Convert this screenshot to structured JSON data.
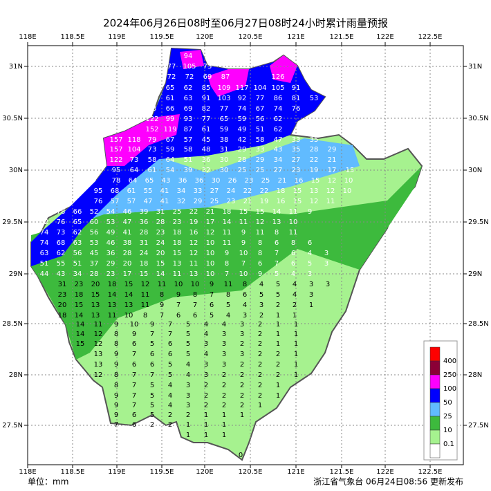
{
  "title": "2024年06月26日08时至06月27日08时24小时累计雨量预报",
  "lon_ticks": [
    "118E",
    "118.5E",
    "119E",
    "119.5E",
    "120E",
    "120.5E",
    "121E",
    "121.5E",
    "122E",
    "122.5E"
  ],
  "lat_ticks": [
    "31N",
    "30.5N",
    "30N",
    "29.5N",
    "29N",
    "28.5N",
    "28N",
    "27.5N"
  ],
  "legend": {
    "levels": [
      400,
      250,
      100,
      50,
      25,
      10,
      0.1
    ],
    "colors": [
      "#fe0000",
      "#8b0036",
      "#fe00fe",
      "#0000fe",
      "#61bbff",
      "#3dba3d",
      "#a6f28f",
      "#ffffff"
    ]
  },
  "unit": "单位：mm",
  "footer": "浙江省气象台 06月24日08:56 更新发布",
  "stations": [
    [
      94
    ],
    [
      77,
      105,
      73
    ],
    [
      72,
      72,
      69,
      87
    ],
    [
      126
    ],
    [
      65,
      62,
      85,
      109,
      117,
      104,
      105,
      91
    ],
    [
      61,
      63,
      91,
      103,
      92,
      77,
      86,
      81,
      53
    ],
    [
      83,
      66,
      69,
      82,
      77,
      74,
      67,
      74,
      76
    ],
    [
      122,
      99,
      93,
      77,
      65,
      59,
      56,
      62
    ],
    [
      152,
      119,
      87,
      61,
      59,
      49,
      51,
      62
    ],
    [
      157,
      118,
      79,
      67,
      57,
      45,
      38,
      42,
      58,
      47,
      33,
      35
    ],
    [
      157,
      104,
      73,
      59,
      58,
      48,
      31,
      29,
      33,
      43,
      35,
      28,
      29
    ],
    [
      122,
      73,
      58,
      64,
      51,
      36,
      30,
      28,
      29,
      34,
      27,
      22,
      21
    ],
    [
      95,
      64,
      61,
      54,
      39,
      32,
      30,
      25,
      25,
      27,
      23,
      19,
      17,
      15
    ],
    [
      78,
      64,
      65,
      43,
      36,
      36,
      30,
      26,
      23,
      25,
      21,
      16,
      15,
      12,
      10
    ],
    [
      95,
      68,
      61,
      55,
      41,
      34,
      33,
      27,
      24,
      22,
      22,
      18,
      15,
      13,
      12,
      10
    ],
    [
      76,
      57,
      57,
      47,
      41,
      32,
      29,
      25,
      23,
      21,
      19,
      16,
      15,
      12,
      11
    ],
    [
      78,
      66,
      52,
      54,
      46,
      39,
      31,
      25,
      22,
      21,
      18,
      15,
      15,
      14,
      11,
      9
    ],
    [
      82,
      76,
      65,
      60,
      53,
      47,
      36,
      28,
      23,
      19,
      17,
      14,
      11,
      12,
      13,
      10
    ],
    [
      74,
      73,
      62,
      56,
      49,
      41,
      28,
      23,
      18,
      16,
      12,
      11,
      9,
      11,
      8,
      11
    ],
    [
      74,
      68,
      63,
      53,
      46,
      38,
      31,
      24,
      18,
      12,
      10,
      11,
      9,
      8,
      6,
      8,
      6
    ],
    [
      63,
      62,
      56,
      45,
      36,
      28,
      24,
      20,
      15,
      12,
      10,
      9,
      10,
      8,
      7,
      6,
      4,
      3
    ],
    [
      51,
      55,
      51,
      37,
      29,
      20,
      18,
      15,
      13,
      11,
      10,
      8,
      7,
      6,
      7,
      6,
      5,
      3
    ],
    [
      44,
      43,
      34,
      28,
      23,
      17,
      15,
      14,
      11,
      13,
      10,
      7,
      10,
      9,
      5,
      4,
      3
    ],
    [
      31,
      23,
      20,
      18,
      15,
      12,
      11,
      10,
      10,
      9,
      11,
      8,
      4,
      5,
      4,
      3,
      3
    ],
    [
      23,
      18,
      15,
      14,
      14,
      11,
      8,
      9,
      8,
      7,
      8,
      6,
      5,
      5,
      4,
      3
    ],
    [
      20,
      15,
      13,
      13,
      13,
      11,
      9,
      7,
      7,
      6,
      5,
      4,
      3,
      2,
      2,
      1
    ],
    [
      18,
      14,
      13,
      11,
      10,
      8,
      7,
      6,
      6,
      5,
      4,
      3,
      2,
      1,
      1
    ],
    [
      14,
      11,
      9,
      10,
      9,
      7,
      5,
      4,
      4,
      3,
      2,
      1,
      1
    ],
    [
      14,
      12,
      8,
      9,
      7,
      7,
      5,
      4,
      3,
      3,
      2,
      1,
      1
    ],
    [
      15,
      12,
      8,
      6,
      5,
      6,
      5,
      3,
      3,
      2,
      2,
      1,
      1
    ],
    [
      13,
      9,
      7,
      6,
      6,
      5,
      4,
      3,
      3,
      2,
      2,
      1
    ],
    [
      13,
      9,
      6,
      6,
      5,
      4,
      3,
      3,
      2,
      2,
      2,
      1
    ],
    [
      12,
      8,
      7,
      7,
      5,
      4,
      3,
      2,
      2,
      2,
      2,
      1
    ],
    [
      8,
      7,
      5,
      4,
      3,
      2,
      2,
      2,
      2,
      1
    ],
    [
      9,
      7,
      5,
      4,
      3,
      2,
      2,
      2,
      2,
      1
    ],
    [
      9,
      7,
      5,
      4,
      3,
      2,
      2,
      2,
      1
    ],
    [
      9,
      6,
      5,
      2,
      2,
      1,
      1,
      1
    ],
    [
      7,
      6,
      2,
      2,
      1,
      1,
      1
    ],
    [
      1,
      1,
      1
    ],
    [
      0
    ]
  ]
}
